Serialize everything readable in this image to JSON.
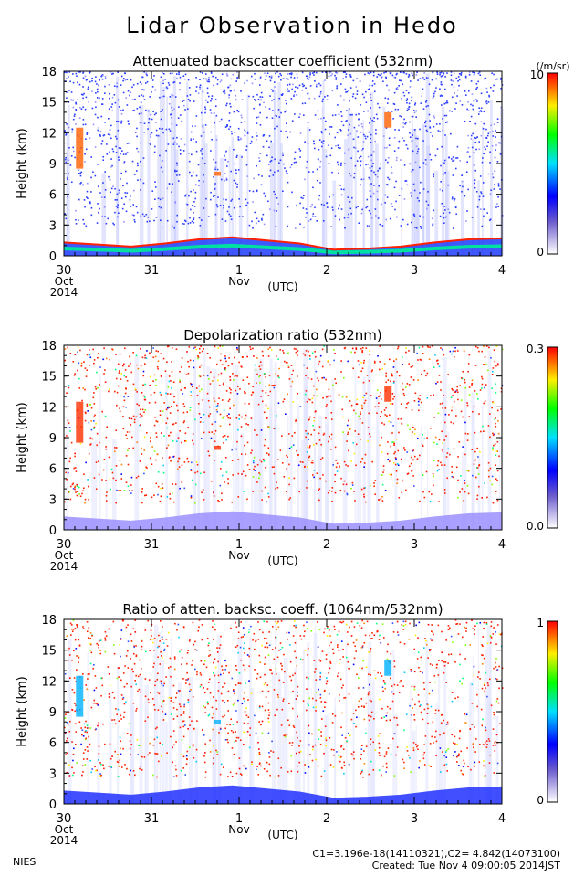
{
  "title": "Lidar Observation in Hedo",
  "x_axis": {
    "ticks": [
      "30",
      "31",
      "1",
      "2",
      "3",
      "4"
    ],
    "month_labels": [
      {
        "label": "Oct",
        "at": "30"
      },
      {
        "label": "Nov",
        "at": "1"
      }
    ],
    "year_label": "2014",
    "unit_label": "(UTC)"
  },
  "y_axis": {
    "label": "Height (km)",
    "ticks": [
      "0",
      "3",
      "6",
      "9",
      "12",
      "15",
      "18"
    ]
  },
  "panels": [
    {
      "title": "Attenuated backscatter coefficient (532nm)",
      "cb_max": "10",
      "cb_min": "0",
      "cb_unit": "(/m/sr)"
    },
    {
      "title": "Depolarization ratio (532nm)",
      "cb_max": "0.3",
      "cb_min": "0.0",
      "cb_unit": ""
    },
    {
      "title": "Ratio of atten. backsc. coeff. (1064nm/532nm)",
      "cb_max": "1",
      "cb_min": "0",
      "cb_unit": ""
    }
  ],
  "footer": {
    "org": "NIES",
    "constants": "C1=3.196e-18(14110321),C2= 4.842(14073100)",
    "created": "Created: Tue Nov  4 09:00:05 2014JST"
  },
  "chart_data": [
    {
      "type": "heatmap",
      "title": "Attenuated backscatter coefficient (532nm)",
      "xlabel": "",
      "ylabel": "Height (km)",
      "xlim": [
        "2014-10-30",
        "2014-11-04"
      ],
      "ylim": [
        0,
        18
      ],
      "colorbar": {
        "min": 0,
        "max": 10,
        "unit": "(/m/sr)"
      },
      "features": {
        "boundary_layer_top_km": [
          [
            30.0,
            1.3
          ],
          [
            30.5,
            1.0
          ],
          [
            31.0,
            1.3
          ],
          [
            31.5,
            1.8
          ],
          [
            32.0,
            1.5
          ],
          [
            32.5,
            0.6
          ],
          [
            33.0,
            0.8
          ],
          [
            33.5,
            1.5
          ],
          [
            33.9,
            1.7
          ]
        ],
        "cloud_patches": [
          {
            "time": 30.18,
            "height_km": [
              8.5,
              12.5
            ]
          },
          {
            "time": 31.75,
            "height_km": [
              7.8,
              8.2
            ]
          },
          {
            "time": 33.7,
            "height_km": [
              12.5,
              14.0
            ]
          }
        ]
      }
    },
    {
      "type": "heatmap",
      "title": "Depolarization ratio (532nm)",
      "xlabel": "",
      "ylabel": "Height (km)",
      "xlim": [
        "2014-10-30",
        "2014-11-04"
      ],
      "ylim": [
        0,
        18
      ],
      "colorbar": {
        "min": 0.0,
        "max": 0.3,
        "unit": ""
      }
    },
    {
      "type": "heatmap",
      "title": "Ratio of atten. backsc. coeff. (1064nm/532nm)",
      "xlabel": "",
      "ylabel": "Height (km)",
      "xlim": [
        "2014-10-30",
        "2014-11-04"
      ],
      "ylim": [
        0,
        18
      ],
      "colorbar": {
        "min": 0,
        "max": 1,
        "unit": ""
      }
    }
  ]
}
